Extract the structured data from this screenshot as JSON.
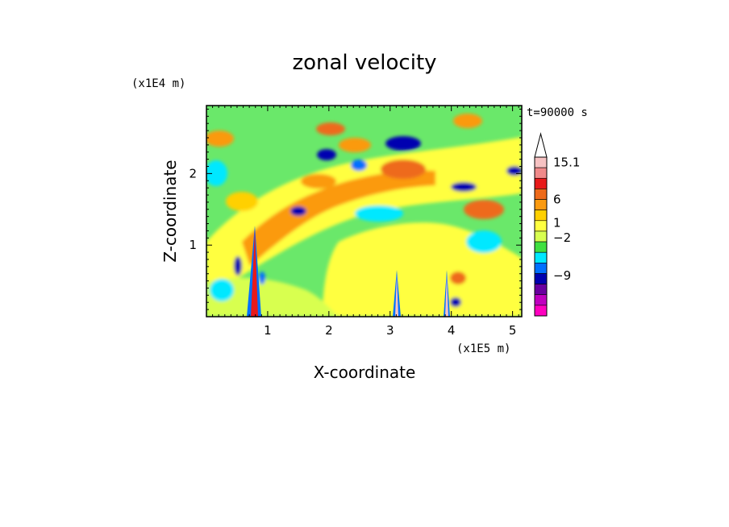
{
  "chart_data": {
    "type": "heatmap",
    "title": "zonal velocity",
    "xlabel": "X-coordinate",
    "ylabel": "Z-coordinate",
    "x_unit": "(x1E5 m)",
    "y_unit": "(x1E4 m)",
    "time_label": "t=90000 s",
    "xlim": [
      0,
      5.15
    ],
    "ylim": [
      0,
      2.95
    ],
    "x_ticks": [
      1,
      2,
      3,
      4,
      5
    ],
    "y_ticks": [
      1,
      2
    ],
    "colorbar": {
      "labels": [
        {
          "value": 15.1,
          "text": "15.1"
        },
        {
          "value": 6,
          "text": "6"
        },
        {
          "value": 1,
          "text": "1"
        },
        {
          "value": -2,
          "text": "−2"
        },
        {
          "value": -9,
          "text": "−9"
        }
      ],
      "colors_top_to_bottom": [
        "#f6c2c2",
        "#f08a8a",
        "#e81a1a",
        "#ee6a1a",
        "#fb9a10",
        "#ffd000",
        "#ffff40",
        "#d8ff50",
        "#40e040",
        "#00e8ff",
        "#0070ff",
        "#0000b0",
        "#6a00a0",
        "#c000c0",
        "#ff00c0"
      ]
    },
    "features": [
      {
        "label": "positive_band",
        "x": 2.9,
        "z": 2.1,
        "value": 7
      },
      {
        "label": "negative_band",
        "x": 3.3,
        "z": 2.45,
        "value": -8
      },
      {
        "label": "positive_band",
        "x": 3.6,
        "z": 1.8,
        "value": 6
      },
      {
        "label": "positive_band",
        "x": 1.5,
        "z": 1.2,
        "value": 5
      },
      {
        "label": "negative_band",
        "x": 1.5,
        "z": 1.5,
        "value": -6
      },
      {
        "label": "mountain_peak",
        "x": 0.8,
        "z": 0.8,
        "value": 15
      },
      {
        "label": "mountain_peak",
        "x": 3.1,
        "z": 0.5,
        "value": 10
      },
      {
        "label": "mountain_peak",
        "x": 3.9,
        "z": 0.5,
        "value": 10
      }
    ]
  }
}
